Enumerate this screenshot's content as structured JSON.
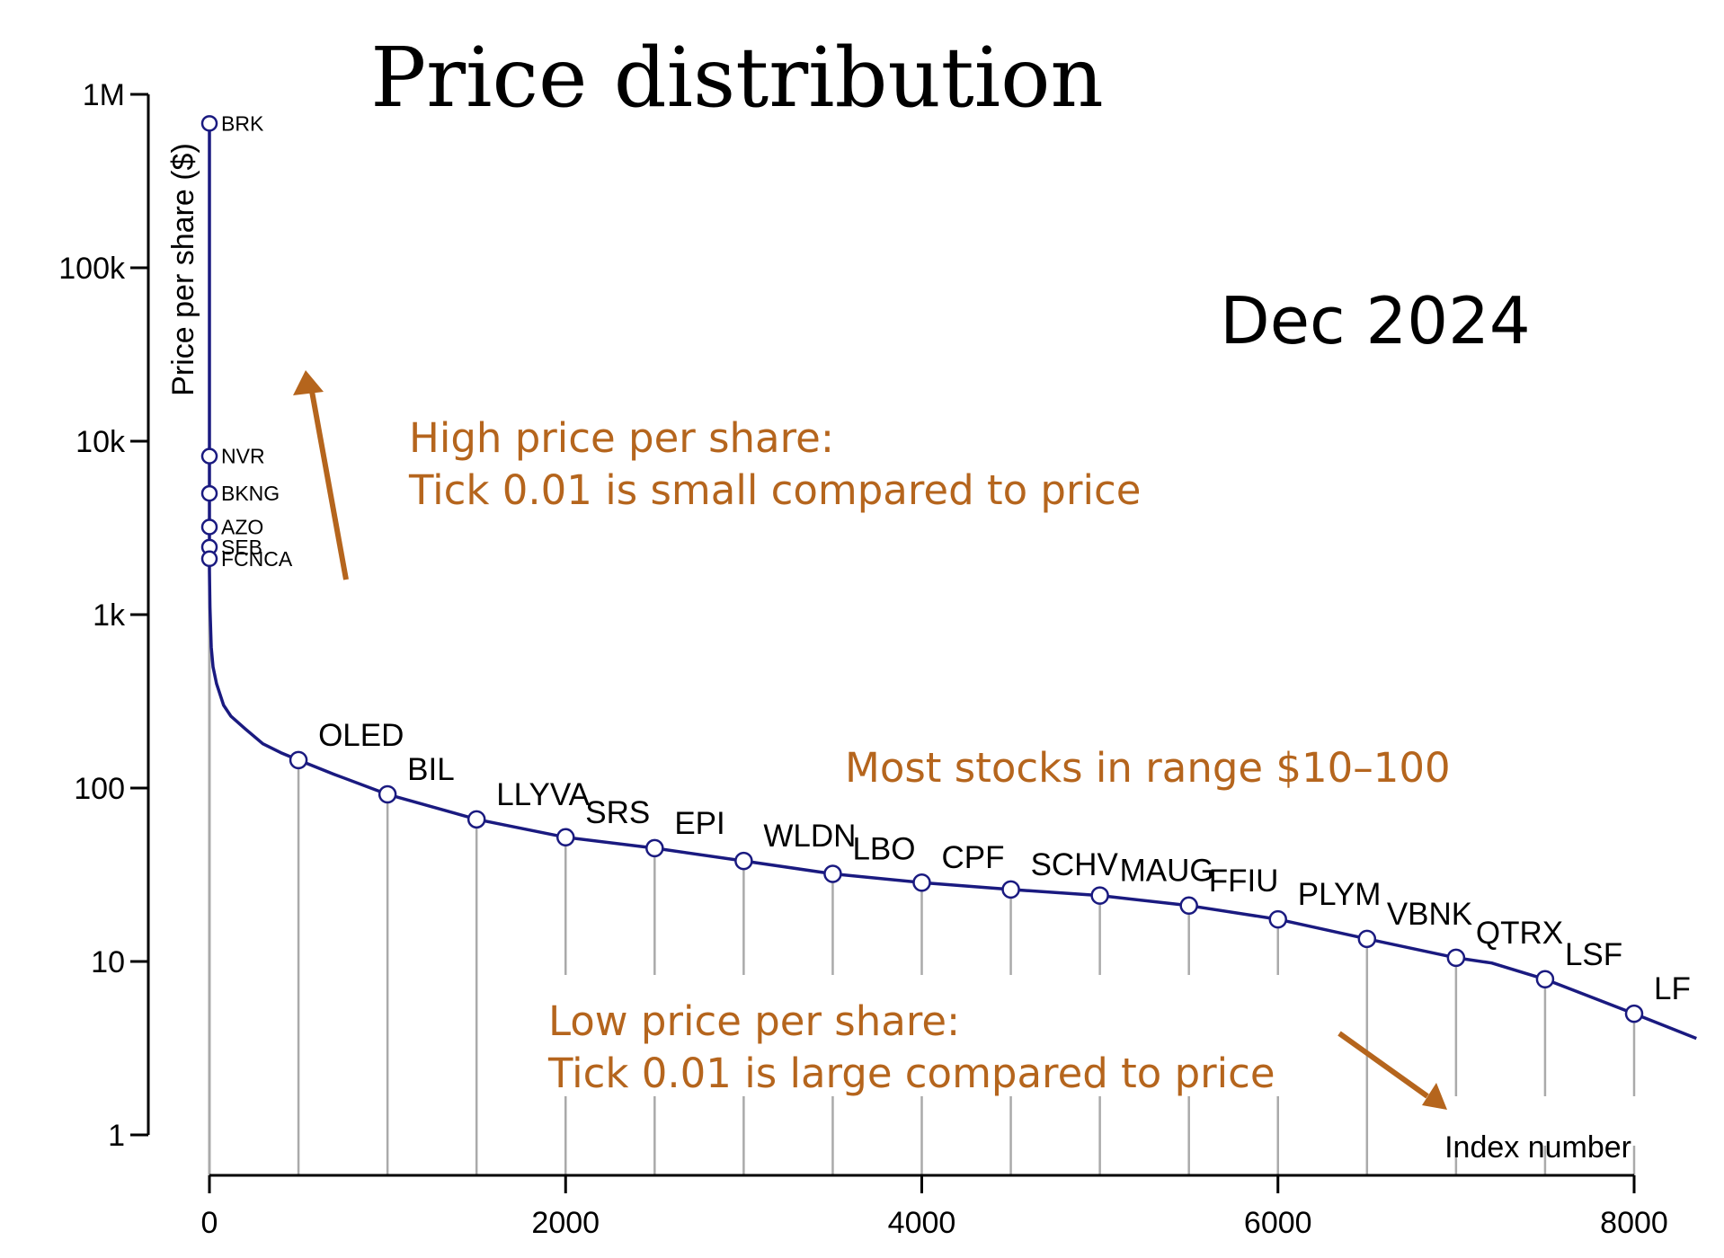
{
  "chart_data": {
    "type": "line",
    "title": "Price distribution",
    "period_label": "Dec 2024",
    "xlabel": "Index number",
    "ylabel": "Price per share ($)",
    "y_scale": "log",
    "xlim": [
      0,
      8350
    ],
    "ylim": [
      0.9,
      1000000
    ],
    "x_ticks": [
      0,
      2000,
      4000,
      6000,
      8000
    ],
    "x_tick_labels": [
      "0",
      "2000",
      "4000",
      "6000",
      "8000"
    ],
    "y_ticks": [
      1,
      10,
      100,
      1000,
      10000,
      100000,
      1000000
    ],
    "y_tick_labels": [
      "1",
      "10",
      "100",
      "1k",
      "10k",
      "100k",
      "1M"
    ],
    "series": [
      {
        "x": [
          0,
          0,
          0,
          0,
          0,
          0,
          0,
          1,
          3,
          10,
          20,
          40,
          80,
          120,
          200,
          300,
          400,
          500,
          700,
          1000,
          1500,
          2000,
          2500,
          3000,
          3500,
          4000,
          4500,
          5000,
          5500,
          6000,
          6500,
          7000,
          7200,
          7500,
          8000,
          8350
        ],
        "y": [
          680000,
          8200,
          5000,
          3200,
          2450,
          2100,
          1800,
          1500,
          1100,
          650,
          500,
          400,
          300,
          260,
          220,
          180,
          160,
          145,
          120,
          92,
          66,
          52,
          45,
          38,
          32,
          28.5,
          26,
          24,
          21,
          17.5,
          13.5,
          10.5,
          9.8,
          7.9,
          5,
          3.6
        ]
      }
    ],
    "labeled_points": [
      {
        "label": "BRK",
        "x": 0,
        "y": 680000
      },
      {
        "label": "NVR",
        "x": 0,
        "y": 8200
      },
      {
        "label": "BKNG",
        "x": 0,
        "y": 5000
      },
      {
        "label": "AZO",
        "x": 0,
        "y": 3200
      },
      {
        "label": "SEB",
        "x": 0,
        "y": 2450
      },
      {
        "label": "FCNCA",
        "x": 0,
        "y": 2100
      },
      {
        "label": "OLED",
        "x": 500,
        "y": 145
      },
      {
        "label": "BIL",
        "x": 1000,
        "y": 92
      },
      {
        "label": "LLYVA",
        "x": 1500,
        "y": 66
      },
      {
        "label": "SRS",
        "x": 2000,
        "y": 52
      },
      {
        "label": "EPI",
        "x": 2500,
        "y": 45
      },
      {
        "label": "WLDN",
        "x": 3000,
        "y": 38
      },
      {
        "label": "LBO",
        "x": 3500,
        "y": 32
      },
      {
        "label": "CPF",
        "x": 4000,
        "y": 28.5
      },
      {
        "label": "SCHV",
        "x": 4500,
        "y": 26
      },
      {
        "label": "MAUG",
        "x": 5000,
        "y": 24
      },
      {
        "label": "FFIU",
        "x": 5500,
        "y": 21
      },
      {
        "label": "PLYM",
        "x": 6000,
        "y": 17.5
      },
      {
        "label": "VBNK",
        "x": 6500,
        "y": 13.5
      },
      {
        "label": "QTRX",
        "x": 7000,
        "y": 10.5
      },
      {
        "label": "LSF",
        "x": 7500,
        "y": 7.9
      },
      {
        "label": "LF",
        "x": 8000,
        "y": 5
      }
    ],
    "annotations": [
      "High price per share:",
      "Tick 0.01 is small compared to price",
      "Most stocks in range $10–100",
      "Low price per share:",
      "Tick 0.01 is large compared to price"
    ],
    "colors": {
      "line": "#1a1a80",
      "annotation": "#b5651d",
      "droplines": "#aaaaaa",
      "axis": "#000000"
    },
    "grid": false,
    "legend": "none"
  }
}
